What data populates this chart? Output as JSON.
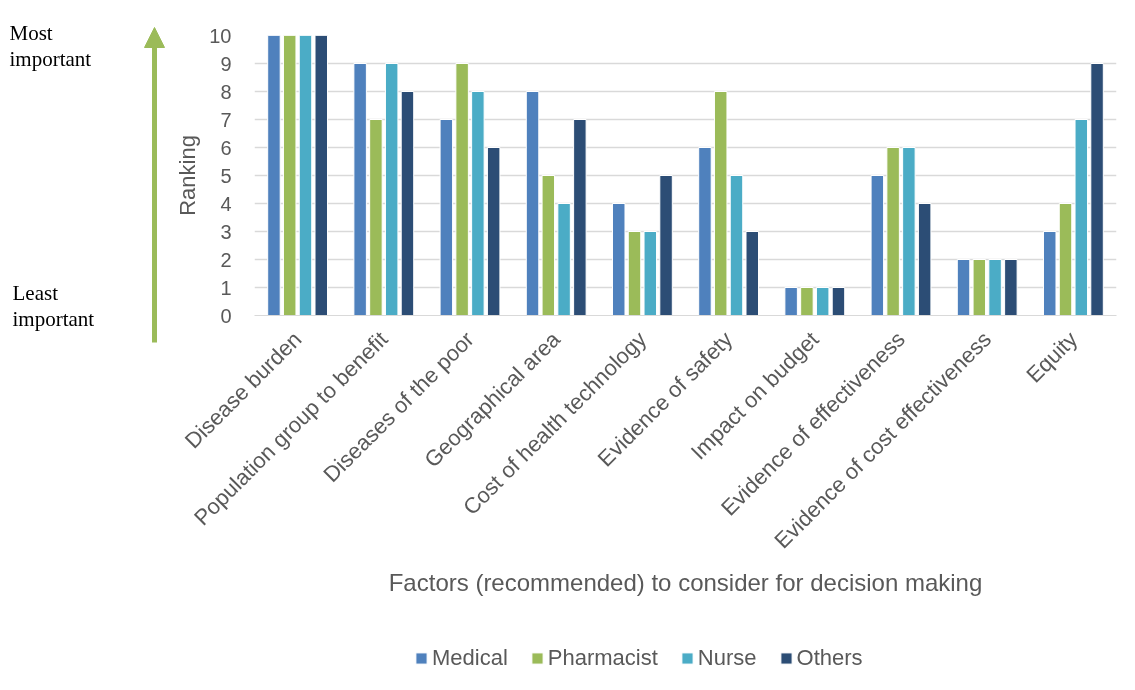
{
  "chart_data": {
    "type": "bar",
    "categories": [
      "Disease burden",
      "Population group to benefit",
      "Diseases of the poor",
      "Geographical area",
      "Cost of health technology",
      "Evidence of safety",
      "Impact on budget",
      "Evidence of effectiveness",
      "Evidence of cost effectiveness",
      "Equity"
    ],
    "series": [
      {
        "name": "Medical",
        "color": "#4f81bd",
        "values": [
          10,
          9,
          7,
          8,
          4,
          6,
          1,
          5,
          2,
          3
        ]
      },
      {
        "name": "Pharmacist",
        "color": "#9bbb59",
        "values": [
          10,
          7,
          9,
          5,
          3,
          8,
          1,
          6,
          2,
          4
        ]
      },
      {
        "name": "Nurse",
        "color": "#4bacc6",
        "values": [
          10,
          9,
          8,
          4,
          3,
          5,
          1,
          6,
          2,
          7
        ]
      },
      {
        "name": "Others",
        "color": "#2c4d75",
        "values": [
          10,
          8,
          6,
          7,
          5,
          3,
          1,
          4,
          2,
          9
        ]
      }
    ],
    "xlabel": "Factors (recommended) to consider for decision making",
    "ylabel": "Ranking",
    "ylim": [
      0,
      10
    ],
    "yticks": [
      0,
      1,
      2,
      3,
      4,
      5,
      6,
      7,
      8,
      9,
      10
    ],
    "grid": "y",
    "legend": "bottom",
    "annotations": [
      "Most important",
      "Least important"
    ]
  }
}
